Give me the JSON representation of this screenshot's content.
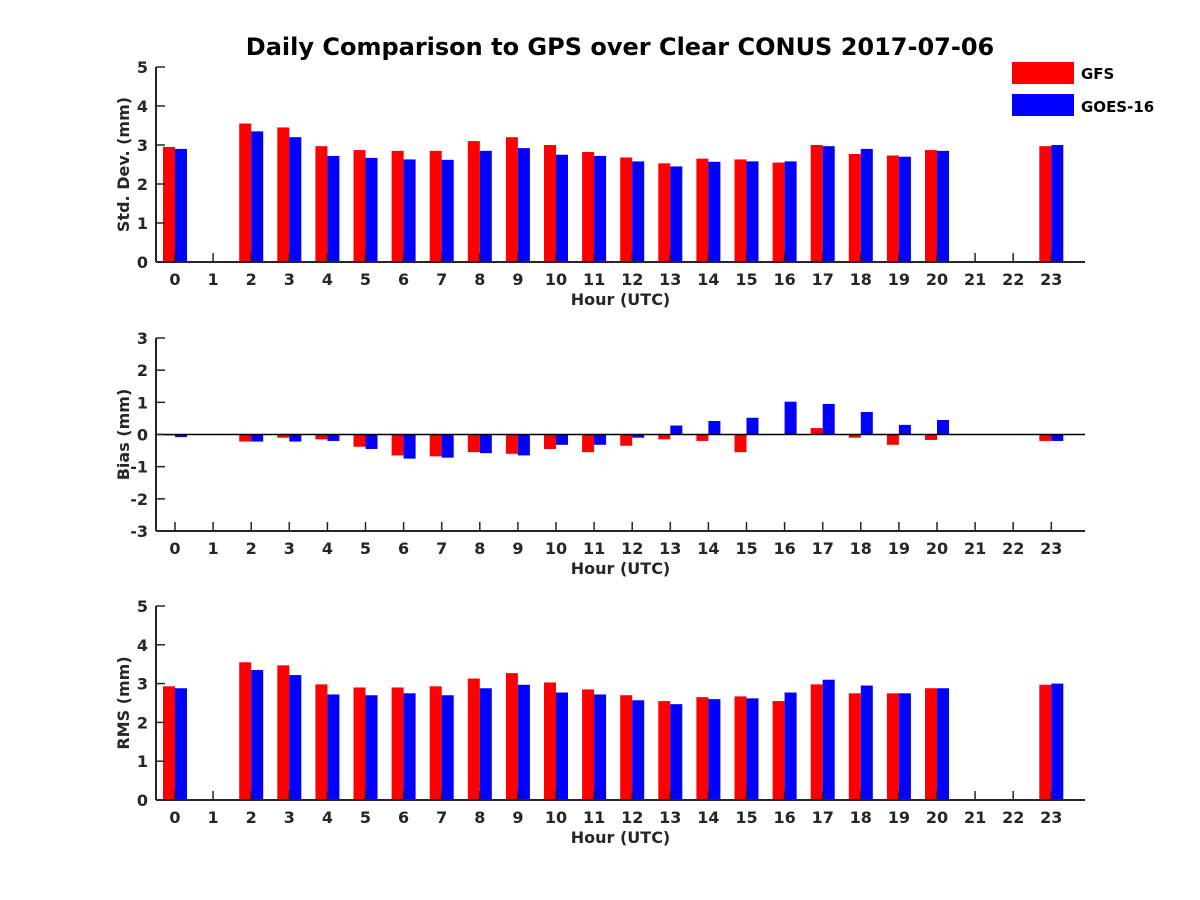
{
  "title": "Daily Comparison to GPS over Clear CONUS 2017-07-06",
  "colors": {
    "GFS": "#ff0000",
    "GOES-16": "#0000ff",
    "axis": "#262626"
  },
  "legend": [
    {
      "name": "GFS",
      "color": "#ff0000"
    },
    {
      "name": "GOES-16",
      "color": "#0000ff"
    }
  ],
  "chart_data": [
    {
      "type": "bar",
      "title": "Daily Comparison to GPS over Clear CONUS 2017-07-06",
      "xlabel": "Hour (UTC)",
      "ylabel": "Std. Dev. (mm)",
      "ylim": [
        0,
        5
      ],
      "yticks": [
        0,
        1,
        2,
        3,
        4,
        5
      ],
      "categories": [
        "0",
        "1",
        "2",
        "3",
        "4",
        "5",
        "6",
        "7",
        "8",
        "9",
        "10",
        "11",
        "12",
        "13",
        "14",
        "15",
        "16",
        "17",
        "18",
        "19",
        "20",
        "21",
        "22",
        "23"
      ],
      "legend_position": "top-right",
      "series": [
        {
          "name": "GFS",
          "values": [
            2.95,
            null,
            3.55,
            3.45,
            2.97,
            2.87,
            2.85,
            2.85,
            3.1,
            3.2,
            3.0,
            2.82,
            2.68,
            2.53,
            2.65,
            2.63,
            2.55,
            3.0,
            2.77,
            2.73,
            2.87,
            null,
            null,
            2.97
          ]
        },
        {
          "name": "GOES-16",
          "values": [
            2.9,
            null,
            3.35,
            3.2,
            2.72,
            2.67,
            2.63,
            2.62,
            2.85,
            2.92,
            2.75,
            2.72,
            2.58,
            2.45,
            2.57,
            2.58,
            2.58,
            2.97,
            2.9,
            2.7,
            2.85,
            null,
            null,
            3.0
          ]
        }
      ]
    },
    {
      "type": "bar",
      "xlabel": "Hour (UTC)",
      "ylabel": "Bias (mm)",
      "ylim": [
        -3,
        3
      ],
      "yticks": [
        -3,
        -2,
        -1,
        0,
        1,
        2,
        3
      ],
      "zero_line": true,
      "categories": [
        "0",
        "1",
        "2",
        "3",
        "4",
        "5",
        "6",
        "7",
        "8",
        "9",
        "10",
        "11",
        "12",
        "13",
        "14",
        "15",
        "16",
        "17",
        "18",
        "19",
        "20",
        "21",
        "22",
        "23"
      ],
      "series": [
        {
          "name": "GFS",
          "values": [
            -0.03,
            null,
            -0.22,
            -0.1,
            -0.15,
            -0.38,
            -0.65,
            -0.68,
            -0.55,
            -0.6,
            -0.45,
            -0.55,
            -0.35,
            -0.15,
            -0.2,
            -0.55,
            0.0,
            0.2,
            -0.1,
            -0.32,
            -0.17,
            null,
            null,
            -0.2
          ]
        },
        {
          "name": "GOES-16",
          "values": [
            -0.08,
            null,
            -0.22,
            -0.22,
            -0.2,
            -0.45,
            -0.75,
            -0.72,
            -0.58,
            -0.65,
            -0.32,
            -0.32,
            -0.1,
            0.28,
            0.42,
            0.52,
            1.02,
            0.95,
            0.7,
            0.3,
            0.45,
            null,
            null,
            -0.2
          ]
        }
      ]
    },
    {
      "type": "bar",
      "xlabel": "Hour (UTC)",
      "ylabel": "RMS (mm)",
      "ylim": [
        0,
        5
      ],
      "yticks": [
        0,
        1,
        2,
        3,
        4,
        5
      ],
      "categories": [
        "0",
        "1",
        "2",
        "3",
        "4",
        "5",
        "6",
        "7",
        "8",
        "9",
        "10",
        "11",
        "12",
        "13",
        "14",
        "15",
        "16",
        "17",
        "18",
        "19",
        "20",
        "21",
        "22",
        "23"
      ],
      "series": [
        {
          "name": "GFS",
          "values": [
            2.93,
            null,
            3.55,
            3.47,
            2.98,
            2.9,
            2.9,
            2.93,
            3.13,
            3.27,
            3.03,
            2.85,
            2.7,
            2.55,
            2.65,
            2.67,
            2.55,
            2.98,
            2.75,
            2.75,
            2.88,
            null,
            null,
            2.97
          ]
        },
        {
          "name": "GOES-16",
          "values": [
            2.88,
            null,
            3.35,
            3.22,
            2.72,
            2.7,
            2.75,
            2.7,
            2.88,
            2.97,
            2.77,
            2.72,
            2.57,
            2.47,
            2.6,
            2.62,
            2.77,
            3.1,
            2.95,
            2.75,
            2.88,
            null,
            null,
            3.0
          ]
        }
      ]
    }
  ]
}
